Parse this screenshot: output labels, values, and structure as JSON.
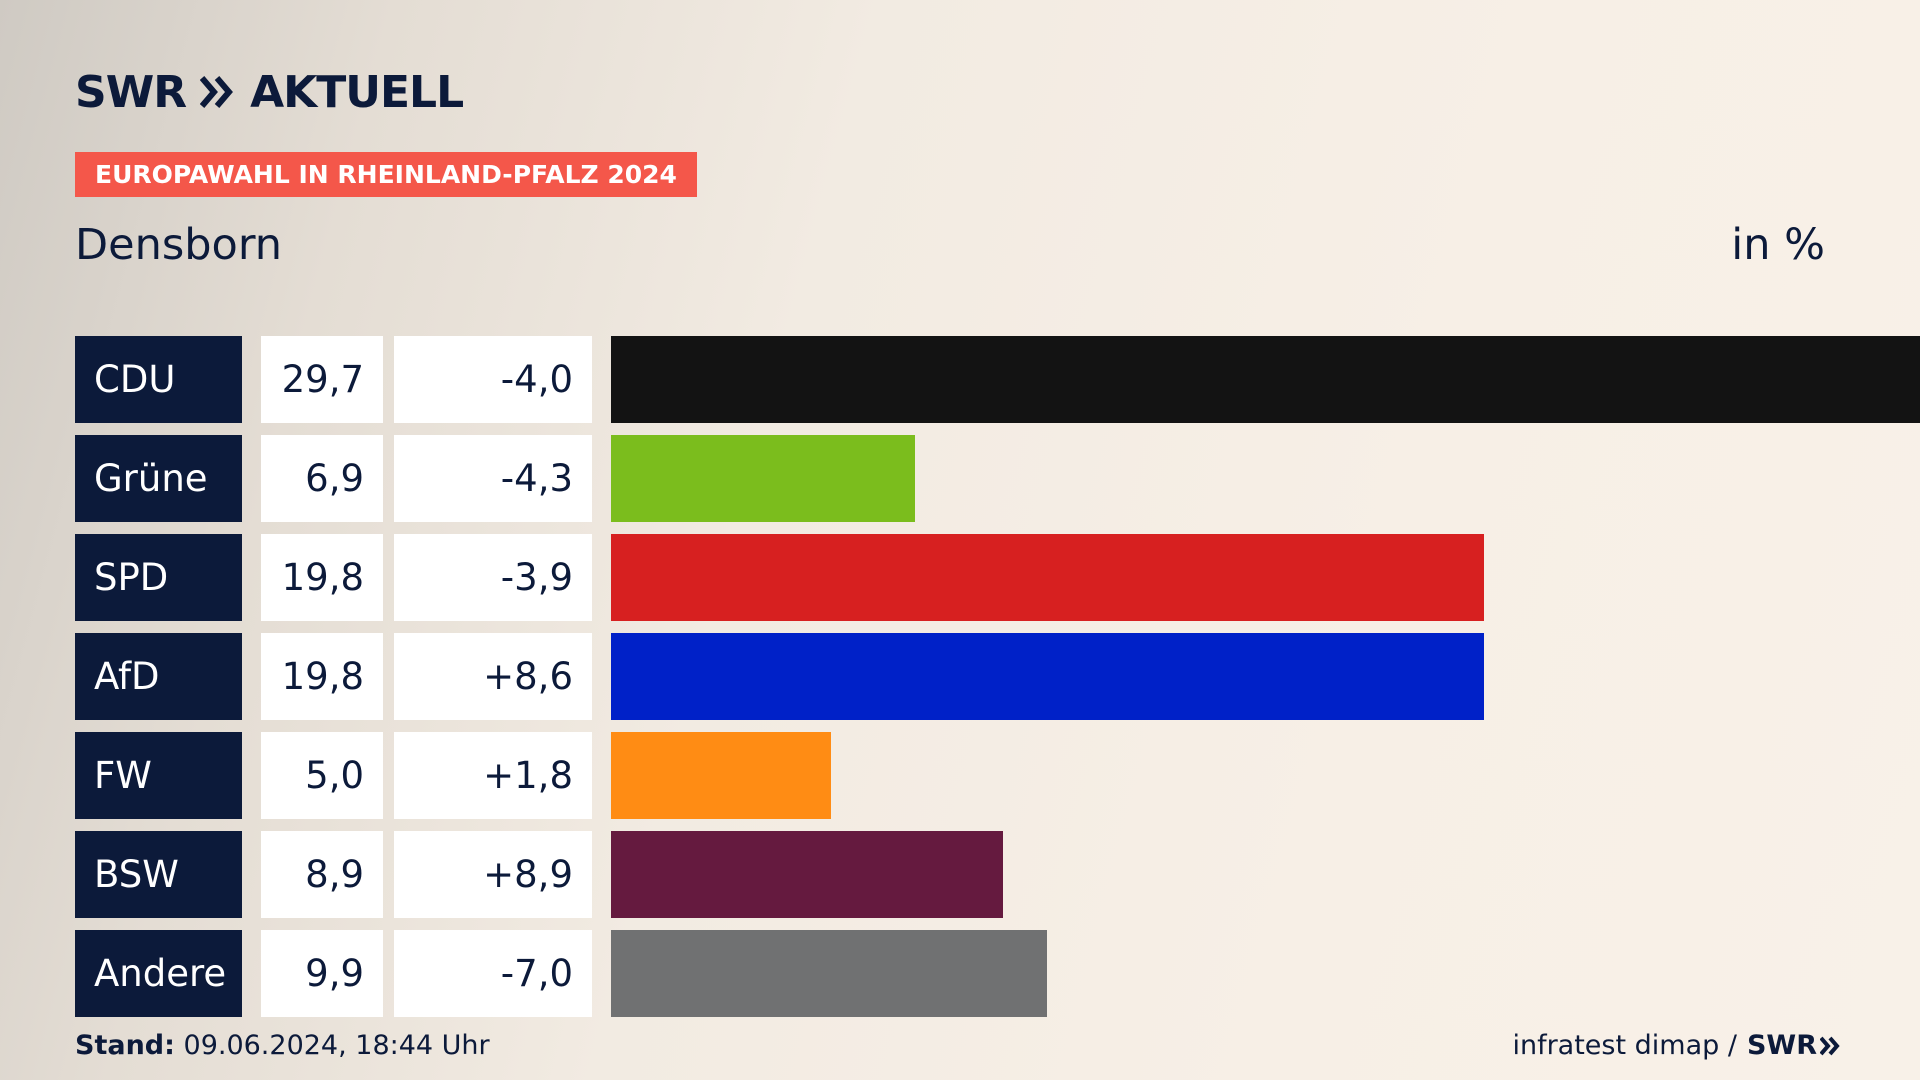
{
  "brand": {
    "name": "SWR",
    "product": "AKTUELL"
  },
  "badge": "EUROPAWAHL IN RHEINLAND-PFALZ 2024",
  "region": "Densborn",
  "unit": "in %",
  "footer": {
    "stand_label": "Stand:",
    "stand_value": "09.06.2024, 18:44 Uhr",
    "source": "infratest dimap /",
    "source_brand": "SWR"
  },
  "chart_data": {
    "type": "bar",
    "orientation": "horizontal",
    "categories": [
      "CDU",
      "Grüne",
      "SPD",
      "AfD",
      "FW",
      "BSW",
      "Andere"
    ],
    "values": [
      29.7,
      6.9,
      19.8,
      19.8,
      5.0,
      8.9,
      9.9
    ],
    "value_labels": [
      "29,7",
      "6,9",
      "19,8",
      "19,8",
      "5,0",
      "8,9",
      "9,9"
    ],
    "diff_labels": [
      "-4,0",
      "-4,3",
      "-3,9",
      "+8,6",
      "+1,8",
      "+8,9",
      "-7,0"
    ],
    "diffs": [
      -4.0,
      -4.3,
      -3.9,
      8.6,
      1.8,
      8.9,
      -7.0
    ],
    "colors": [
      "#131313",
      "#7bbd1d",
      "#d72020",
      "#0021c8",
      "#ff8c14",
      "#651a3f",
      "#707172"
    ],
    "title": "Densborn",
    "ylabel": "in %",
    "xlim": [
      0,
      29.7
    ],
    "grid": false,
    "legend": "none"
  }
}
